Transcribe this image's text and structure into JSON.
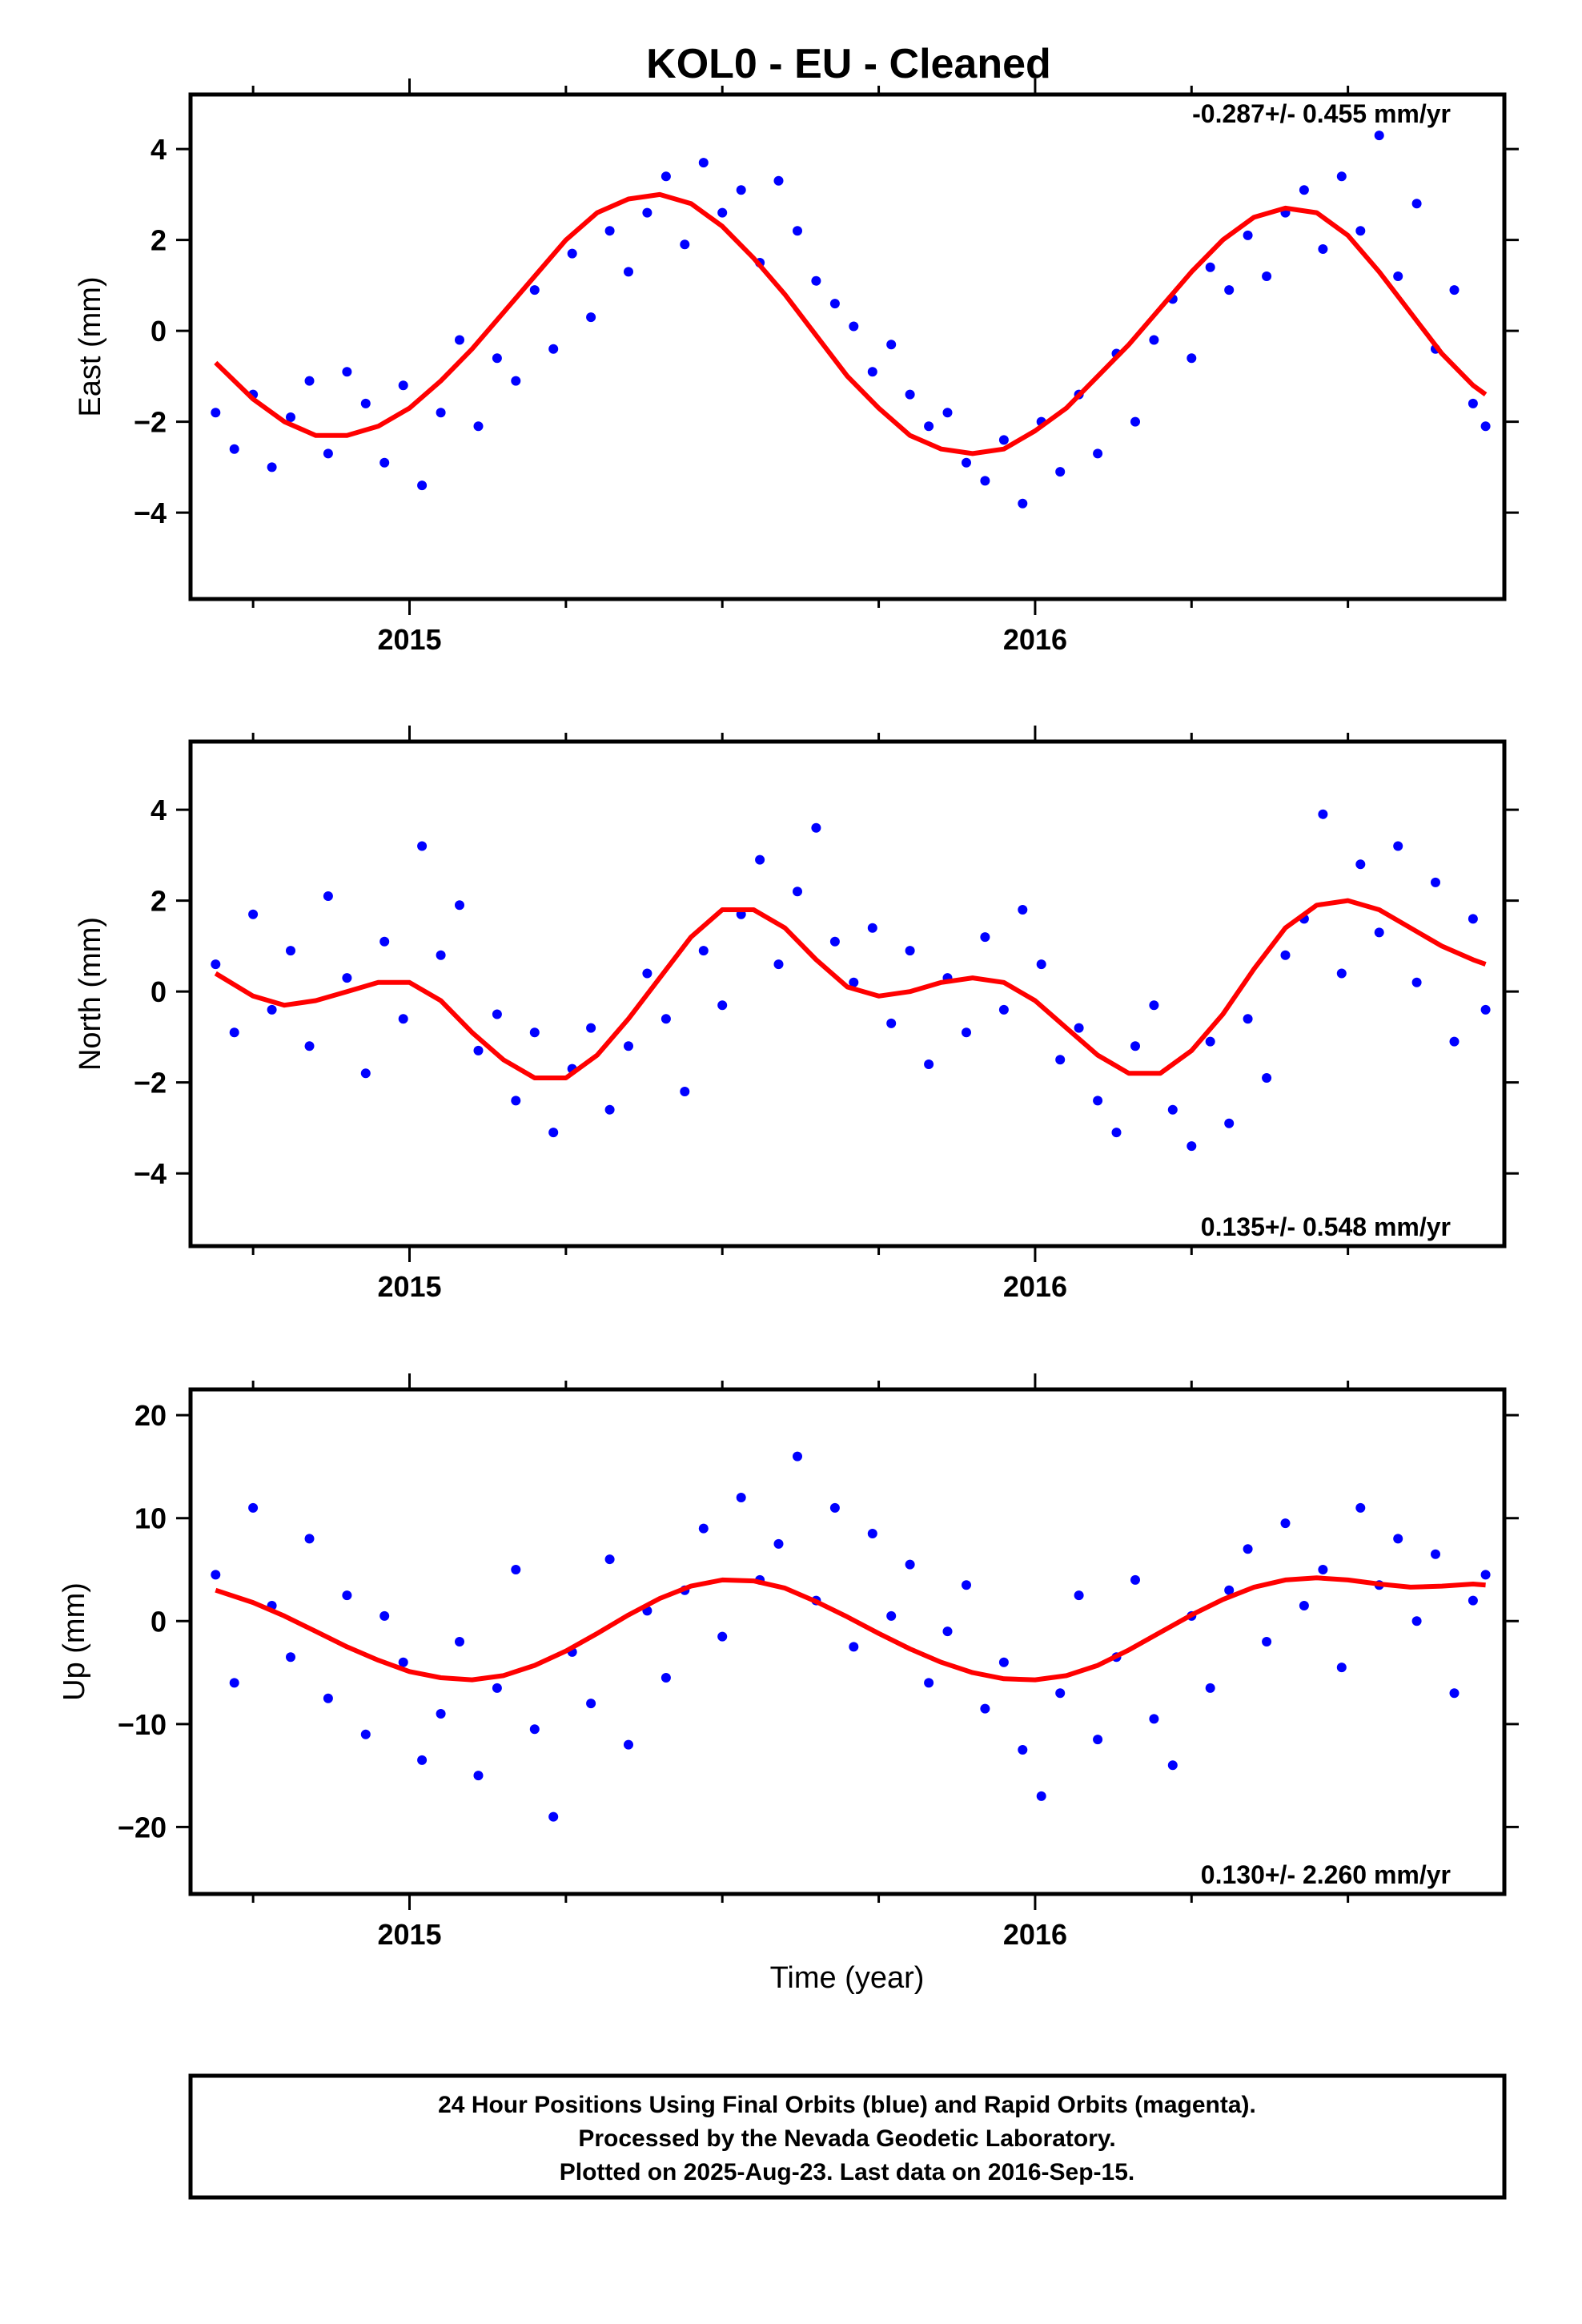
{
  "figure": {
    "title": "KOL0  - EU - Cleaned",
    "xlabel": "Time (year)",
    "footer": [
      "24 Hour Positions Using Final Orbits (blue) and Rapid Orbits (magenta).",
      "Processed by the Nevada Geodetic Laboratory.",
      "Plotted on 2025-Aug-23. Last data on 2016-Sep-15."
    ],
    "colors": {
      "points": "#0000ff",
      "fit": "#ff0000",
      "frame": "#000000"
    }
  },
  "chart_data": [
    {
      "type": "scatter",
      "ylabel": "East (mm)",
      "rate_text": "-0.287+/- 0.455 mm/yr",
      "rate_position": "top-right",
      "xlim": [
        2014.65,
        2016.75
      ],
      "ylim": [
        -5.9,
        5.2
      ],
      "xticks": [
        "2015",
        "2016"
      ],
      "yticks": [
        "4",
        "2",
        "0",
        "−2",
        "−4"
      ],
      "series": [
        {
          "kind": "points",
          "x": [
            2014.69,
            2014.72,
            2014.75,
            2014.78,
            2014.81,
            2014.84,
            2014.87,
            2014.9,
            2014.93,
            2014.96,
            2014.99,
            2015.02,
            2015.05,
            2015.08,
            2015.11,
            2015.14,
            2015.17,
            2015.2,
            2015.23,
            2015.26,
            2015.29,
            2015.32,
            2015.35,
            2015.38,
            2015.41,
            2015.44,
            2015.47,
            2015.5,
            2015.53,
            2015.56,
            2015.59,
            2015.62,
            2015.65,
            2015.68,
            2015.71,
            2015.74,
            2015.77,
            2015.8,
            2015.83,
            2015.86,
            2015.89,
            2015.92,
            2015.95,
            2015.98,
            2016.01,
            2016.04,
            2016.07,
            2016.1,
            2016.13,
            2016.16,
            2016.19,
            2016.22,
            2016.25,
            2016.28,
            2016.31,
            2016.34,
            2016.37,
            2016.4,
            2016.43,
            2016.46,
            2016.49,
            2016.52,
            2016.55,
            2016.58,
            2016.61,
            2016.64,
            2016.67,
            2016.7,
            2016.72
          ],
          "y": [
            -1.8,
            -2.6,
            -1.4,
            -3.0,
            -1.9,
            -1.1,
            -2.7,
            -0.9,
            -1.6,
            -2.9,
            -1.2,
            -3.4,
            -1.8,
            -0.2,
            -2.1,
            -0.6,
            -1.1,
            0.9,
            -0.4,
            1.7,
            0.3,
            2.2,
            1.3,
            2.6,
            3.4,
            1.9,
            3.7,
            2.6,
            3.1,
            1.5,
            3.3,
            2.2,
            1.1,
            0.6,
            0.1,
            -0.9,
            -0.3,
            -1.4,
            -2.1,
            -1.8,
            -2.9,
            -3.3,
            -2.4,
            -3.8,
            -2.0,
            -3.1,
            -1.4,
            -2.7,
            -0.5,
            -2.0,
            -0.2,
            0.7,
            -0.6,
            1.4,
            0.9,
            2.1,
            1.2,
            2.6,
            3.1,
            1.8,
            3.4,
            2.2,
            4.3,
            1.2,
            2.8,
            -0.4,
            0.9,
            -1.6,
            -2.1
          ]
        },
        {
          "kind": "fit",
          "x": [
            2014.69,
            2014.75,
            2014.8,
            2014.85,
            2014.9,
            2014.95,
            2015.0,
            2015.05,
            2015.1,
            2015.15,
            2015.2,
            2015.25,
            2015.3,
            2015.35,
            2015.4,
            2015.45,
            2015.5,
            2015.55,
            2015.6,
            2015.65,
            2015.7,
            2015.75,
            2015.8,
            2015.85,
            2015.9,
            2015.95,
            2016.0,
            2016.05,
            2016.1,
            2016.15,
            2016.2,
            2016.25,
            2016.3,
            2016.35,
            2016.4,
            2016.45,
            2016.5,
            2016.55,
            2016.6,
            2016.65,
            2016.7,
            2016.72
          ],
          "y": [
            -0.7,
            -1.5,
            -2.0,
            -2.3,
            -2.3,
            -2.1,
            -1.7,
            -1.1,
            -0.4,
            0.4,
            1.2,
            2.0,
            2.6,
            2.9,
            3.0,
            2.8,
            2.3,
            1.6,
            0.8,
            -0.1,
            -1.0,
            -1.7,
            -2.3,
            -2.6,
            -2.7,
            -2.6,
            -2.2,
            -1.7,
            -1.0,
            -0.3,
            0.5,
            1.3,
            2.0,
            2.5,
            2.7,
            2.6,
            2.1,
            1.3,
            0.4,
            -0.5,
            -1.2,
            -1.4
          ]
        }
      ]
    },
    {
      "type": "scatter",
      "ylabel": "North (mm)",
      "rate_text": "0.135+/- 0.548 mm/yr",
      "rate_position": "bottom-right",
      "xlim": [
        2014.65,
        2016.75
      ],
      "ylim": [
        -5.6,
        5.5
      ],
      "xticks": [
        "2015",
        "2016"
      ],
      "yticks": [
        "4",
        "2",
        "0",
        "−2",
        "−4"
      ],
      "series": [
        {
          "kind": "points",
          "x": [
            2014.69,
            2014.72,
            2014.75,
            2014.78,
            2014.81,
            2014.84,
            2014.87,
            2014.9,
            2014.93,
            2014.96,
            2014.99,
            2015.02,
            2015.05,
            2015.08,
            2015.11,
            2015.14,
            2015.17,
            2015.2,
            2015.23,
            2015.26,
            2015.29,
            2015.32,
            2015.35,
            2015.38,
            2015.41,
            2015.44,
            2015.47,
            2015.5,
            2015.53,
            2015.56,
            2015.59,
            2015.62,
            2015.65,
            2015.68,
            2015.71,
            2015.74,
            2015.77,
            2015.8,
            2015.83,
            2015.86,
            2015.89,
            2015.92,
            2015.95,
            2015.98,
            2016.01,
            2016.04,
            2016.07,
            2016.1,
            2016.13,
            2016.16,
            2016.19,
            2016.22,
            2016.25,
            2016.28,
            2016.31,
            2016.34,
            2016.37,
            2016.4,
            2016.43,
            2016.46,
            2016.49,
            2016.52,
            2016.55,
            2016.58,
            2016.61,
            2016.64,
            2016.67,
            2016.7,
            2016.72
          ],
          "y": [
            0.6,
            -0.9,
            1.7,
            -0.4,
            0.9,
            -1.2,
            2.1,
            0.3,
            -1.8,
            1.1,
            -0.6,
            3.2,
            0.8,
            1.9,
            -1.3,
            -0.5,
            -2.4,
            -0.9,
            -3.1,
            -1.7,
            -0.8,
            -2.6,
            -1.2,
            0.4,
            -0.6,
            -2.2,
            0.9,
            -0.3,
            1.7,
            2.9,
            0.6,
            2.2,
            3.6,
            1.1,
            0.2,
            1.4,
            -0.7,
            0.9,
            -1.6,
            0.3,
            -0.9,
            1.2,
            -0.4,
            1.8,
            0.6,
            -1.5,
            -0.8,
            -2.4,
            -3.1,
            -1.2,
            -0.3,
            -2.6,
            -3.4,
            -1.1,
            -2.9,
            -0.6,
            -1.9,
            0.8,
            1.6,
            3.9,
            0.4,
            2.8,
            1.3,
            3.2,
            0.2,
            2.4,
            -1.1,
            1.6,
            -0.4
          ]
        },
        {
          "kind": "fit",
          "x": [
            2014.69,
            2014.75,
            2014.8,
            2014.85,
            2014.9,
            2014.95,
            2015.0,
            2015.05,
            2015.1,
            2015.15,
            2015.2,
            2015.25,
            2015.3,
            2015.35,
            2015.4,
            2015.45,
            2015.5,
            2015.55,
            2015.6,
            2015.65,
            2015.7,
            2015.75,
            2015.8,
            2015.85,
            2015.9,
            2015.95,
            2016.0,
            2016.05,
            2016.1,
            2016.15,
            2016.2,
            2016.25,
            2016.3,
            2016.35,
            2016.4,
            2016.45,
            2016.5,
            2016.55,
            2016.6,
            2016.65,
            2016.7,
            2016.72
          ],
          "y": [
            0.4,
            -0.1,
            -0.3,
            -0.2,
            0.0,
            0.2,
            0.2,
            -0.2,
            -0.9,
            -1.5,
            -1.9,
            -1.9,
            -1.4,
            -0.6,
            0.3,
            1.2,
            1.8,
            1.8,
            1.4,
            0.7,
            0.1,
            -0.1,
            0.0,
            0.2,
            0.3,
            0.2,
            -0.2,
            -0.8,
            -1.4,
            -1.8,
            -1.8,
            -1.3,
            -0.5,
            0.5,
            1.4,
            1.9,
            2.0,
            1.8,
            1.4,
            1.0,
            0.7,
            0.6
          ]
        }
      ]
    },
    {
      "type": "scatter",
      "ylabel": "Up (mm)",
      "rate_text": "0.130+/- 2.260 mm/yr",
      "rate_position": "bottom-right",
      "xlim": [
        2014.65,
        2016.75
      ],
      "ylim": [
        -26.5,
        22.5
      ],
      "xticks": [
        "2015",
        "2016"
      ],
      "yticks": [
        "20",
        "10",
        "0",
        "−10",
        "−20"
      ],
      "series": [
        {
          "kind": "points",
          "x": [
            2014.69,
            2014.72,
            2014.75,
            2014.78,
            2014.81,
            2014.84,
            2014.87,
            2014.9,
            2014.93,
            2014.96,
            2014.99,
            2015.02,
            2015.05,
            2015.08,
            2015.11,
            2015.14,
            2015.17,
            2015.2,
            2015.23,
            2015.26,
            2015.29,
            2015.32,
            2015.35,
            2015.38,
            2015.41,
            2015.44,
            2015.47,
            2015.5,
            2015.53,
            2015.56,
            2015.59,
            2015.62,
            2015.65,
            2015.68,
            2015.71,
            2015.74,
            2015.77,
            2015.8,
            2015.83,
            2015.86,
            2015.89,
            2015.92,
            2015.95,
            2015.98,
            2016.01,
            2016.04,
            2016.07,
            2016.1,
            2016.13,
            2016.16,
            2016.19,
            2016.22,
            2016.25,
            2016.28,
            2016.31,
            2016.34,
            2016.37,
            2016.4,
            2016.43,
            2016.46,
            2016.49,
            2016.52,
            2016.55,
            2016.58,
            2016.61,
            2016.64,
            2016.67,
            2016.7,
            2016.72
          ],
          "y": [
            4.5,
            -6.0,
            11.0,
            1.5,
            -3.5,
            8.0,
            -7.5,
            2.5,
            -11.0,
            0.5,
            -4.0,
            -13.5,
            -9.0,
            -2.0,
            -15.0,
            -6.5,
            5.0,
            -10.5,
            -19.0,
            -3.0,
            -8.0,
            6.0,
            -12.0,
            1.0,
            -5.5,
            3.0,
            9.0,
            -1.5,
            12.0,
            4.0,
            7.5,
            16.0,
            2.0,
            11.0,
            -2.5,
            8.5,
            0.5,
            5.5,
            -6.0,
            -1.0,
            3.5,
            -8.5,
            -4.0,
            -12.5,
            -17.0,
            -7.0,
            2.5,
            -11.5,
            -3.5,
            4.0,
            -9.5,
            -14.0,
            0.5,
            -6.5,
            3.0,
            7.0,
            -2.0,
            9.5,
            1.5,
            5.0,
            -4.5,
            11.0,
            3.5,
            8.0,
            0.0,
            6.5,
            -7.0,
            2.0,
            4.5
          ]
        },
        {
          "kind": "fit",
          "x": [
            2014.69,
            2014.75,
            2014.8,
            2014.85,
            2014.9,
            2014.95,
            2015.0,
            2015.05,
            2015.1,
            2015.15,
            2015.2,
            2015.25,
            2015.3,
            2015.35,
            2015.4,
            2015.45,
            2015.5,
            2015.55,
            2015.6,
            2015.65,
            2015.7,
            2015.75,
            2015.8,
            2015.85,
            2015.9,
            2015.95,
            2016.0,
            2016.05,
            2016.1,
            2016.15,
            2016.2,
            2016.25,
            2016.3,
            2016.35,
            2016.4,
            2016.45,
            2016.5,
            2016.55,
            2016.6,
            2016.65,
            2016.7,
            2016.72
          ],
          "y": [
            3.0,
            1.8,
            0.5,
            -1.0,
            -2.5,
            -3.8,
            -4.9,
            -5.5,
            -5.7,
            -5.3,
            -4.3,
            -2.9,
            -1.2,
            0.6,
            2.2,
            3.4,
            4.0,
            3.9,
            3.2,
            1.9,
            0.4,
            -1.2,
            -2.7,
            -4.0,
            -5.0,
            -5.6,
            -5.7,
            -5.3,
            -4.3,
            -2.8,
            -1.1,
            0.6,
            2.1,
            3.3,
            4.0,
            4.2,
            4.0,
            3.6,
            3.3,
            3.4,
            3.6,
            3.5
          ]
        }
      ]
    }
  ]
}
